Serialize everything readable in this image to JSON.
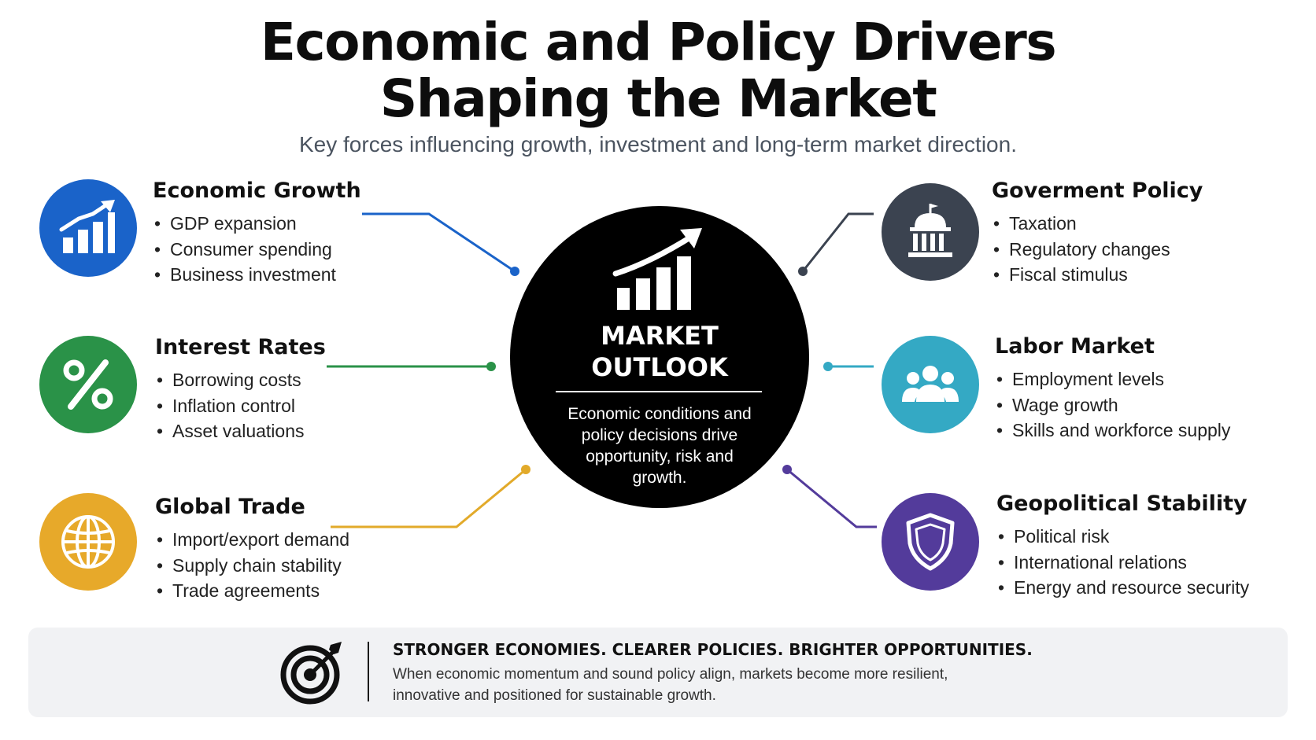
{
  "title_line1": "Economic and Policy Drivers",
  "title_line2": "Shaping the Market",
  "subtitle": "Key forces influencing growth, investment and long-term market direction.",
  "center": {
    "label_line1": "MARKET",
    "label_line2": "OUTLOOK",
    "description": "Economic conditions and policy decisions drive opportunity, risk and growth."
  },
  "drivers": {
    "economic_growth": {
      "title": "Economic Growth",
      "bullets": [
        "GDP expansion",
        "Consumer spending",
        "Business investment"
      ],
      "color": "#1a63c9",
      "icon": "bar-chart-up-icon"
    },
    "interest_rates": {
      "title": "Interest Rates",
      "bullets": [
        "Borrowing costs",
        "Inflation control",
        "Asset valuations"
      ],
      "color": "#2a9248",
      "icon": "percent-icon"
    },
    "global_trade": {
      "title": "Global Trade",
      "bullets": [
        "Import/export demand",
        "Supply chain stability",
        "Trade agreements"
      ],
      "color": "#e7a92a",
      "icon": "globe-icon"
    },
    "government_policy": {
      "title": "Goverment Policy",
      "bullets": [
        "Taxation",
        "Regulatory changes",
        "Fiscal stimulus"
      ],
      "color": "#3b4350",
      "icon": "capitol-building-icon"
    },
    "labor_market": {
      "title": "Labor Market",
      "bullets": [
        "Employment levels",
        "Wage growth",
        "Skills and workforce supply"
      ],
      "color": "#34a9c4",
      "icon": "people-group-icon"
    },
    "geopolitical_stability": {
      "title": "Geopolitical Stability",
      "bullets": [
        "Political risk",
        "International relations",
        "Energy and resource security"
      ],
      "color": "#533b9b",
      "icon": "shield-icon"
    }
  },
  "footer": {
    "headline": "STRONGER ECONOMIES. CLEARER POLICIES. BRIGHTER OPPORTUNITIES.",
    "text": "When economic momentum and sound policy align, markets become more resilient, innovative and positioned for sustainable growth.",
    "icon": "target-arrow-icon"
  }
}
